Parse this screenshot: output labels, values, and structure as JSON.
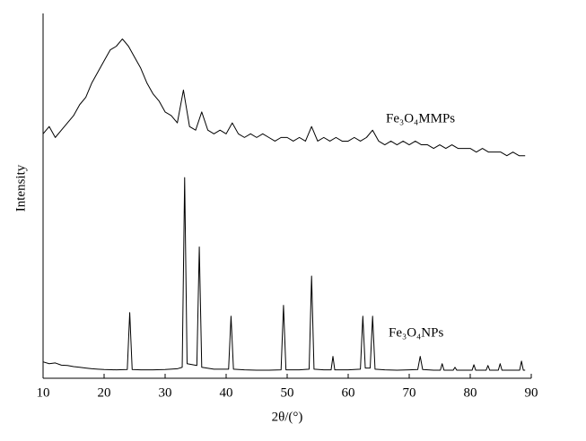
{
  "chart_data": {
    "type": "line",
    "xlabel": "2θ/(°)",
    "ylabel": "Intensity",
    "xlim": [
      10,
      90
    ],
    "xticks": [
      10,
      20,
      30,
      40,
      50,
      60,
      70,
      80,
      90
    ],
    "ylim": [
      0,
      100
    ],
    "series": [
      {
        "name": "Fe₃O₄MMPs",
        "color": "#000000",
        "x": [
          10,
          11,
          12,
          13,
          14,
          15,
          16,
          17,
          18,
          19,
          20,
          21,
          22,
          23,
          24,
          25,
          26,
          27,
          28,
          29,
          30,
          31,
          32,
          33,
          34,
          35,
          36,
          37,
          38,
          39,
          40,
          41,
          42,
          43,
          44,
          45,
          46,
          47,
          48,
          49,
          50,
          51,
          52,
          53,
          54,
          55,
          56,
          57,
          58,
          59,
          60,
          61,
          62,
          63,
          64,
          65,
          66,
          67,
          68,
          69,
          70,
          71,
          72,
          73,
          74,
          75,
          76,
          77,
          78,
          79,
          80,
          81,
          82,
          83,
          84,
          85,
          86,
          87,
          88,
          89
        ],
        "values": [
          67,
          69,
          66,
          68,
          70,
          72,
          75,
          77,
          81,
          84,
          87,
          90,
          91,
          93,
          91,
          88,
          85,
          81,
          78,
          76,
          73,
          72,
          70,
          79,
          69,
          68,
          73,
          68,
          67,
          68,
          67,
          70,
          67,
          66,
          67,
          66,
          67,
          66,
          65,
          66,
          66,
          65,
          66,
          65,
          69,
          65,
          66,
          65,
          66,
          65,
          65,
          66,
          65,
          66,
          68,
          65,
          64,
          65,
          64,
          65,
          64,
          65,
          64,
          64,
          63,
          64,
          63,
          64,
          63,
          63,
          63,
          62,
          63,
          62,
          62,
          62,
          61,
          62,
          61,
          61
        ]
      },
      {
        "name": "Fe₃O₄NPs",
        "color": "#000000",
        "x": [
          10,
          11,
          12,
          13,
          14,
          15,
          16,
          17,
          18,
          19,
          20,
          22,
          23.8,
          24.2,
          24.6,
          26,
          28,
          30,
          32,
          32.8,
          33.2,
          33.6,
          35.2,
          35.6,
          36,
          38,
          40.4,
          40.8,
          41.2,
          43,
          45,
          47,
          49,
          49.4,
          49.8,
          52,
          53.6,
          54,
          54.4,
          56,
          57.2,
          57.5,
          57.8,
          60,
          62,
          62.4,
          62.8,
          63.6,
          64,
          64.4,
          66,
          68,
          70,
          71.4,
          71.8,
          72.2,
          74,
          75.1,
          75.4,
          75.7,
          77.2,
          77.5,
          77.8,
          79,
          80.3,
          80.6,
          80.9,
          82.6,
          82.9,
          83.2,
          84.6,
          84.9,
          85.2,
          87,
          88.1,
          88.4,
          88.7,
          89
        ],
        "values": [
          4.5,
          4,
          4.2,
          3.6,
          3.5,
          3.2,
          3,
          2.8,
          2.6,
          2.5,
          2.4,
          2.3,
          2.4,
          18,
          2.4,
          2.3,
          2.3,
          2.4,
          2.6,
          3,
          55,
          4,
          3.5,
          36,
          3,
          2.5,
          2.5,
          17,
          2.5,
          2.3,
          2.2,
          2.2,
          2.3,
          20,
          2.3,
          2.3,
          2.5,
          28,
          2.5,
          2.3,
          2.3,
          6,
          2.3,
          2.3,
          2.5,
          17,
          2.8,
          2.8,
          17,
          2.5,
          2.3,
          2.2,
          2.3,
          2.4,
          6,
          2.4,
          2.2,
          2.2,
          4,
          2.2,
          2.2,
          3,
          2.2,
          2.2,
          2.2,
          3.7,
          2.2,
          2.2,
          3.5,
          2.2,
          2.2,
          4,
          2.2,
          2.2,
          2.2,
          4.7,
          2.2,
          2.2
        ]
      }
    ]
  }
}
